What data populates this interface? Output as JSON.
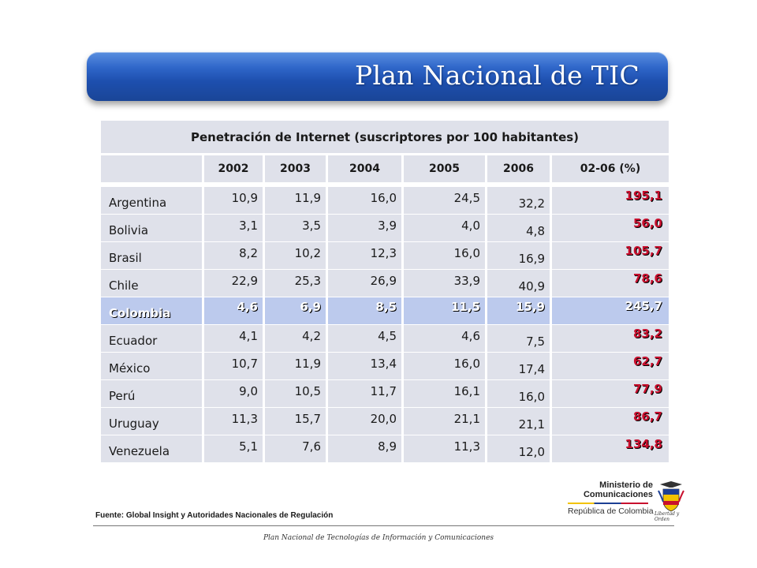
{
  "header": {
    "title": "Plan Nacional de TIC"
  },
  "table": {
    "title": "Penetración de Internet (suscriptores por 100 habitantes)",
    "columns": [
      "",
      "2002",
      "2003",
      "2004",
      "2005",
      "2006",
      "02-06 (%)"
    ],
    "rows": [
      {
        "country": "Argentina",
        "values": [
          "10,9",
          "11,9",
          "16,0",
          "24,5",
          "32,2"
        ],
        "change": "195,1"
      },
      {
        "country": "Bolivia",
        "values": [
          "3,1",
          "3,5",
          "3,9",
          "4,0",
          "4,8"
        ],
        "change": "56,0"
      },
      {
        "country": "Brasil",
        "values": [
          "8,2",
          "10,2",
          "12,3",
          "16,0",
          "16,9"
        ],
        "change": "105,7"
      },
      {
        "country": "Chile",
        "values": [
          "22,9",
          "25,3",
          "26,9",
          "33,9",
          "40,9"
        ],
        "change": "78,6"
      },
      {
        "country": "Colombia",
        "values": [
          "4,6",
          "6,9",
          "8,5",
          "11,5",
          "15,9"
        ],
        "change": "245,7",
        "highlight": true
      },
      {
        "country": "Ecuador",
        "values": [
          "4,1",
          "4,2",
          "4,5",
          "4,6",
          "7,5"
        ],
        "change": "83,2"
      },
      {
        "country": "México",
        "values": [
          "10,7",
          "11,9",
          "13,4",
          "16,0",
          "17,4"
        ],
        "change": "62,7"
      },
      {
        "country": "Perú",
        "values": [
          "9,0",
          "10,5",
          "11,7",
          "16,1",
          "16,0"
        ],
        "change": "77,9"
      },
      {
        "country": "Uruguay",
        "values": [
          "11,3",
          "15,7",
          "20,0",
          "21,1",
          "21,1"
        ],
        "change": "86,7"
      },
      {
        "country": "Venezuela",
        "values": [
          "5,1",
          "7,6",
          "8,9",
          "11,3",
          "12,0"
        ],
        "change": "134,8"
      }
    ]
  },
  "source": "Fuente: Global Insight y Autoridades Nacionales de Regulación",
  "logo": {
    "ministry_line1": "Ministerio de",
    "ministry_line2": "Comunicaciones",
    "country": "República de Colombia",
    "motto": "Libertad y Orden"
  },
  "footer": "Plan Nacional de Tecnologías de Información y Comunicaciones"
}
